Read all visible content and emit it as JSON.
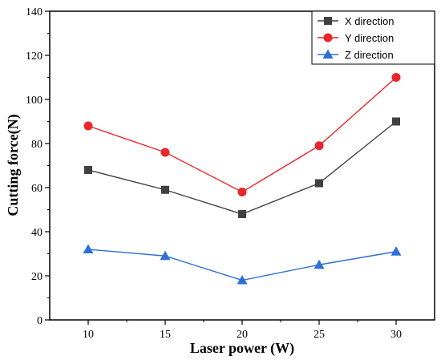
{
  "chart_data": {
    "type": "line",
    "title": "",
    "xlabel": "Laser power (W)",
    "ylabel": "Cutting force(N)",
    "x": [
      10,
      15,
      20,
      25,
      30
    ],
    "xticks": [
      "10",
      "15",
      "20",
      "25",
      "30"
    ],
    "xlim": [
      7.5,
      32.5
    ],
    "ylim": [
      0,
      140
    ],
    "yticks": [
      "0",
      "20",
      "40",
      "60",
      "80",
      "100",
      "120",
      "140"
    ],
    "grid": false,
    "legend_position": "top-right",
    "series": [
      {
        "name": "X direction",
        "values": [
          68,
          59,
          48,
          62,
          90
        ],
        "color": "#404040",
        "marker": "square"
      },
      {
        "name": "Y direction",
        "values": [
          88,
          76,
          58,
          79,
          110
        ],
        "color": "#e8262b",
        "marker": "circle"
      },
      {
        "name": "Z direction",
        "values": [
          32,
          29,
          18,
          25,
          31
        ],
        "color": "#2f6fd6",
        "marker": "triangle"
      }
    ]
  }
}
